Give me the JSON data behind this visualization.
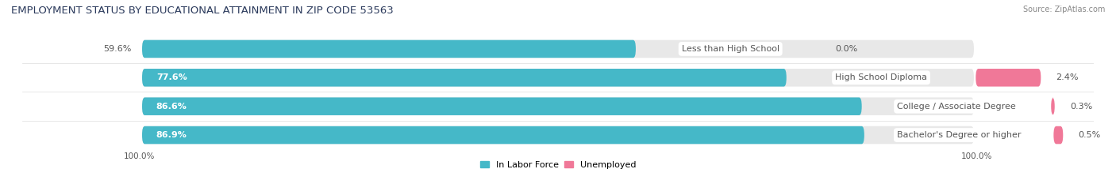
{
  "title": "EMPLOYMENT STATUS BY EDUCATIONAL ATTAINMENT IN ZIP CODE 53563",
  "source": "Source: ZipAtlas.com",
  "categories": [
    "Less than High School",
    "High School Diploma",
    "College / Associate Degree",
    "Bachelor's Degree or higher"
  ],
  "labor_force_pct": [
    59.6,
    77.6,
    86.6,
    86.9
  ],
  "unemployed_pct": [
    0.0,
    2.4,
    0.3,
    0.5
  ],
  "color_labor": "#45b8c8",
  "color_unemployed": "#f07898",
  "color_bar_bg": "#e8e8e8",
  "legend_labor": "In Labor Force",
  "legend_unemployed": "Unemployed",
  "axis_label_left": "100.0%",
  "axis_label_right": "100.0%",
  "title_fontsize": 9.5,
  "source_fontsize": 7,
  "bar_label_fontsize": 8,
  "category_fontsize": 8,
  "legend_fontsize": 8,
  "axis_tick_fontsize": 7.5,
  "title_color": "#2b3a5c",
  "label_color_inside": "#ffffff",
  "label_color_outside": "#555555",
  "category_text_color": "#555555"
}
